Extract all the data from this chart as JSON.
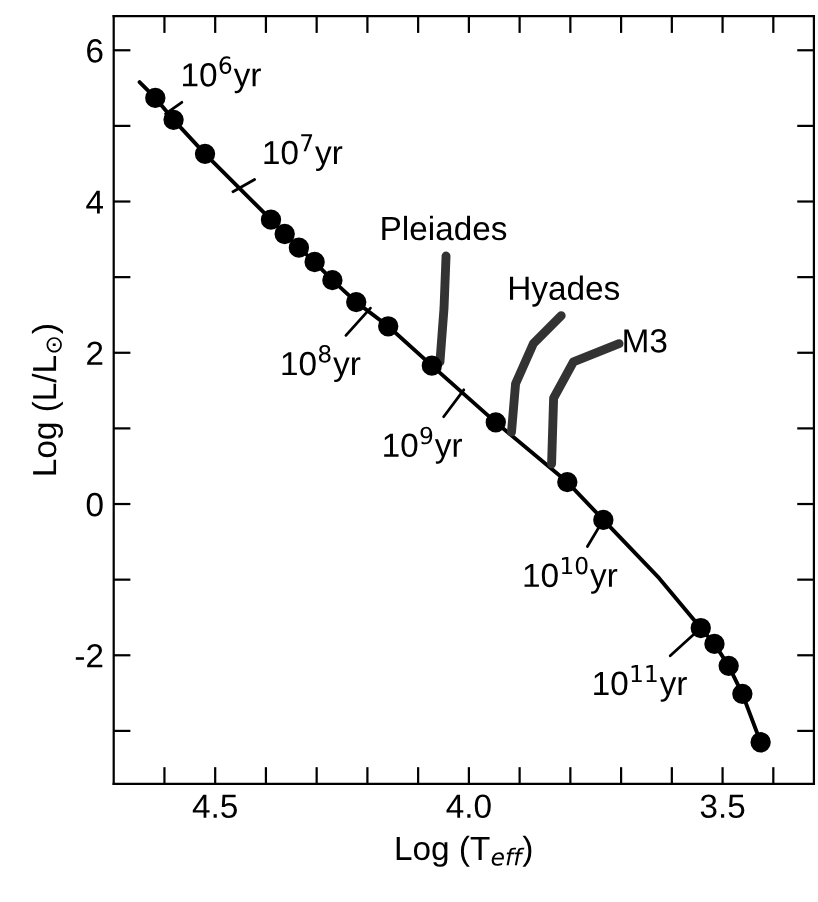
{
  "chart_data": {
    "type": "line",
    "xlabel": "Log (T$_{eff}$)",
    "ylabel": "Log (L/L$_{⊙}$)",
    "xlim": [
      4.7,
      3.32
    ],
    "ylim": [
      -3.7,
      6.45
    ],
    "xticks": [
      {
        "value": 4.6,
        "label": null
      },
      4.5,
      {
        "value": 4.4,
        "label": null
      },
      {
        "value": 4.3,
        "label": null
      },
      {
        "value": 4.2,
        "label": null
      },
      {
        "value": 4.1,
        "label": null
      },
      {
        "value": 4.0,
        "label": "4.0"
      },
      {
        "value": 3.9,
        "label": null
      },
      {
        "value": 3.8,
        "label": null
      },
      {
        "value": 3.7,
        "label": null
      },
      {
        "value": 3.6,
        "label": null
      },
      3.5,
      {
        "value": 3.4,
        "label": null
      }
    ],
    "yticks": [
      {
        "value": -3,
        "label": null
      },
      -2,
      {
        "value": -1,
        "label": null
      },
      0,
      {
        "value": 1,
        "label": null
      },
      2,
      {
        "value": 3,
        "label": null
      },
      4,
      {
        "value": 5,
        "label": null
      },
      6
    ],
    "grid": false,
    "legend": false,
    "series": [
      {
        "color": "#000000",
        "x": [
          4.649,
          4.618,
          4.582,
          4.52,
          4.39,
          4.363,
          4.335,
          4.304,
          4.269,
          4.222,
          4.159,
          4.073,
          3.947,
          3.806,
          3.735,
          3.625,
          3.543,
          3.516,
          3.488,
          3.461,
          3.425
        ],
        "values": [
          5.58,
          5.37,
          5.08,
          4.63,
          3.76,
          3.57,
          3.39,
          3.2,
          2.96,
          2.67,
          2.35,
          1.83,
          1.08,
          0.29,
          -0.21,
          -0.98,
          -1.64,
          -1.85,
          -2.14,
          -2.51,
          -3.15
        ]
      },
      {
        "type": "scatter",
        "color": "#000000",
        "marker": "circle",
        "x": [
          4.618,
          4.582,
          4.52,
          4.39,
          4.363,
          4.335,
          4.304,
          4.269,
          4.222,
          4.159,
          4.073,
          3.947,
          3.806,
          3.735,
          3.543,
          3.516,
          3.488,
          3.461,
          3.425
        ],
        "values": [
          5.37,
          5.08,
          4.63,
          3.76,
          3.57,
          3.39,
          3.2,
          2.96,
          2.67,
          2.35,
          1.83,
          1.08,
          0.29,
          -0.21,
          -1.64,
          -1.85,
          -2.14,
          -2.51,
          -3.15
        ]
      },
      {
        "name": "Pleiades",
        "color": "#333333",
        "x": [
          4.057,
          4.049,
          4.045
        ],
        "values": [
          1.88,
          2.59,
          3.28
        ]
      },
      {
        "name": "Hyades",
        "color": "#333333",
        "x": [
          3.916,
          3.908,
          3.873,
          3.818
        ],
        "values": [
          0.95,
          1.59,
          2.12,
          2.49
        ]
      },
      {
        "name": "M3",
        "color": "#333333",
        "x": [
          3.837,
          3.833,
          3.794,
          3.704
        ],
        "values": [
          0.53,
          1.4,
          1.88,
          2.12
        ]
      }
    ],
    "annotations": [
      {
        "text": "10$^{6}$yr",
        "x": 4.598,
        "y": 5.16
      },
      {
        "text": "10$^{7}$yr",
        "x": 4.465,
        "y": 4.13
      },
      {
        "text": "10$^{8}$yr",
        "x": 4.194,
        "y": 2.59
      },
      {
        "text": "10$^{9}$yr",
        "x": 4.01,
        "y": 1.51
      },
      {
        "text": "10$^{10}$yr",
        "x": 3.735,
        "y": -0.21
      },
      {
        "text": "10$^{11}$yr",
        "x": 3.543,
        "y": -1.64
      }
    ]
  }
}
